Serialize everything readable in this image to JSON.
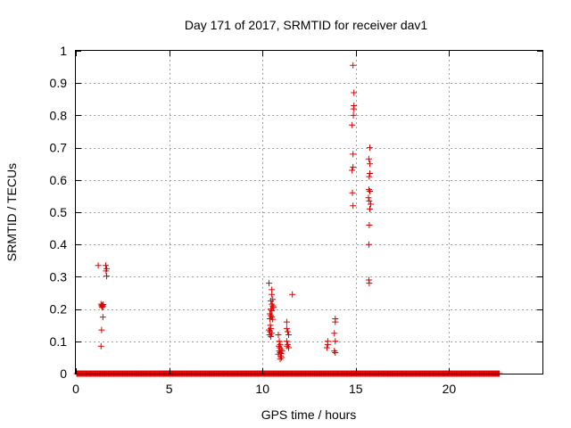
{
  "chart_data": {
    "type": "scatter",
    "title": "Day 171 of 2017, SRMTID for receiver dav1",
    "xlabel": "GPS time / hours",
    "ylabel": "SRMTID / TECUs",
    "xlim": [
      0,
      25
    ],
    "ylim": [
      0,
      1
    ],
    "x_ticks": [
      0,
      5,
      10,
      15,
      20
    ],
    "y_ticks": [
      0,
      0.1,
      0.2,
      0.3,
      0.4,
      0.5,
      0.6,
      0.7,
      0.8,
      0.9,
      1
    ],
    "x_tick_labels": [
      "0",
      "5",
      "10",
      "15",
      "20"
    ],
    "y_tick_labels": [
      "0",
      "0.1",
      "0.2",
      "0.3",
      "0.4",
      "0.5",
      "0.6",
      "0.7",
      "0.8",
      "0.9",
      "1"
    ],
    "grid": true,
    "marker": "+",
    "color": "#e00000",
    "baseline": {
      "x_start": 0.05,
      "x_end": 22.7,
      "y": 0,
      "step": 0.04
    },
    "series": [
      {
        "name": "dav1",
        "points": [
          [
            1.2,
            0.335
          ],
          [
            1.6,
            0.335
          ],
          [
            1.65,
            0.325
          ],
          [
            1.62,
            0.318
          ],
          [
            1.65,
            0.302
          ],
          [
            1.35,
            0.215
          ],
          [
            1.38,
            0.21
          ],
          [
            1.4,
            0.205
          ],
          [
            1.42,
            0.212
          ],
          [
            1.45,
            0.208
          ],
          [
            1.47,
            0.214
          ],
          [
            1.45,
            0.175
          ],
          [
            1.38,
            0.135
          ],
          [
            1.35,
            0.085
          ],
          [
            10.35,
            0.28
          ],
          [
            10.5,
            0.26
          ],
          [
            10.5,
            0.245
          ],
          [
            10.55,
            0.23
          ],
          [
            10.45,
            0.225
          ],
          [
            10.5,
            0.215
          ],
          [
            10.55,
            0.21
          ],
          [
            10.6,
            0.205
          ],
          [
            10.45,
            0.2
          ],
          [
            10.5,
            0.195
          ],
          [
            10.4,
            0.185
          ],
          [
            10.45,
            0.18
          ],
          [
            10.5,
            0.175
          ],
          [
            10.4,
            0.17
          ],
          [
            10.55,
            0.168
          ],
          [
            10.42,
            0.15
          ],
          [
            10.45,
            0.14
          ],
          [
            10.35,
            0.135
          ],
          [
            10.4,
            0.13
          ],
          [
            10.5,
            0.125
          ],
          [
            10.38,
            0.12
          ],
          [
            10.45,
            0.115
          ],
          [
            10.85,
            0.12
          ],
          [
            10.9,
            0.1
          ],
          [
            10.95,
            0.09
          ],
          [
            10.88,
            0.085
          ],
          [
            10.92,
            0.08
          ],
          [
            11.0,
            0.075
          ],
          [
            10.9,
            0.07
          ],
          [
            10.95,
            0.065
          ],
          [
            11.0,
            0.062
          ],
          [
            10.85,
            0.06
          ],
          [
            10.98,
            0.055
          ],
          [
            11.02,
            0.05
          ],
          [
            11.05,
            0.07
          ],
          [
            10.95,
            0.045
          ],
          [
            11.3,
            0.16
          ],
          [
            11.3,
            0.14
          ],
          [
            11.35,
            0.13
          ],
          [
            11.4,
            0.12
          ],
          [
            11.3,
            0.1
          ],
          [
            11.35,
            0.09
          ],
          [
            11.32,
            0.085
          ],
          [
            11.4,
            0.08
          ],
          [
            11.6,
            0.245
          ],
          [
            13.5,
            0.1
          ],
          [
            13.5,
            0.09
          ],
          [
            13.45,
            0.08
          ],
          [
            13.9,
            0.17
          ],
          [
            13.9,
            0.16
          ],
          [
            13.85,
            0.125
          ],
          [
            13.9,
            0.1
          ],
          [
            13.85,
            0.07
          ],
          [
            13.9,
            0.065
          ],
          [
            14.85,
            0.955
          ],
          [
            14.9,
            0.87
          ],
          [
            14.9,
            0.83
          ],
          [
            14.88,
            0.82
          ],
          [
            14.87,
            0.8
          ],
          [
            14.8,
            0.77
          ],
          [
            14.85,
            0.68
          ],
          [
            14.85,
            0.64
          ],
          [
            14.8,
            0.63
          ],
          [
            14.82,
            0.56
          ],
          [
            14.85,
            0.52
          ],
          [
            15.75,
            0.7
          ],
          [
            15.7,
            0.665
          ],
          [
            15.75,
            0.65
          ],
          [
            15.75,
            0.62
          ],
          [
            15.72,
            0.61
          ],
          [
            15.7,
            0.57
          ],
          [
            15.75,
            0.565
          ],
          [
            15.68,
            0.545
          ],
          [
            15.72,
            0.535
          ],
          [
            15.8,
            0.525
          ],
          [
            15.75,
            0.51
          ],
          [
            15.72,
            0.46
          ],
          [
            15.7,
            0.4
          ],
          [
            15.7,
            0.29
          ],
          [
            15.72,
            0.28
          ]
        ]
      }
    ]
  }
}
